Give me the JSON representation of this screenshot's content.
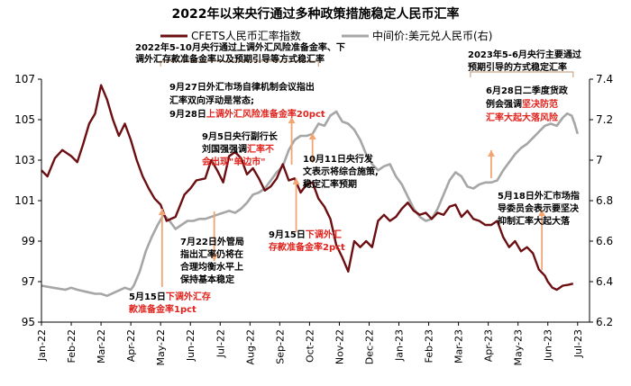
{
  "colors": {
    "cfets": "#6b0f12",
    "usdcny": "#a6a6a6",
    "annotation_text": "#000000",
    "highlight": "#e0231d",
    "arrow": "#f2a573",
    "bracket": "#c9a78a"
  },
  "chart_data": {
    "type": "line",
    "title": "2022年以来央行通过多种政策措施稳定人民币汇率",
    "x": [
      "Jan-22",
      "Feb-22",
      "Mar-22",
      "Apr-22",
      "May-22",
      "Jun-22",
      "Jul-22",
      "Aug-22",
      "Sep-22",
      "Oct-22",
      "Nov-22",
      "Dec-22",
      "Jan-23",
      "Feb-23",
      "Mar-23",
      "Apr-23",
      "May-23",
      "Jun-23",
      "Jul-23"
    ],
    "x_range": [
      0,
      18.4
    ],
    "left_axis": {
      "ylim": [
        95,
        107
      ],
      "ticks": [
        "95",
        "97",
        "99",
        "101",
        "103",
        "105",
        "107"
      ]
    },
    "right_axis": {
      "ylim": [
        6.2,
        7.4
      ],
      "ticks": [
        "6.2",
        "6.4",
        "6.6",
        "6.8",
        "7",
        "7.2",
        "7.4"
      ]
    },
    "grid": false,
    "legend_position": "top-center",
    "series": [
      {
        "name": "CFETS人民币汇率指数",
        "axis": "left",
        "points": [
          [
            0,
            102.5
          ],
          [
            0.2,
            102.2
          ],
          [
            0.45,
            103.1
          ],
          [
            0.7,
            103.5
          ],
          [
            1.0,
            103.2
          ],
          [
            1.2,
            102.9
          ],
          [
            1.4,
            103.8
          ],
          [
            1.6,
            104.8
          ],
          [
            1.8,
            105.3
          ],
          [
            2.0,
            106.7
          ],
          [
            2.2,
            106.0
          ],
          [
            2.4,
            105.0
          ],
          [
            2.6,
            104.2
          ],
          [
            2.8,
            104.8
          ],
          [
            3.0,
            104.0
          ],
          [
            3.2,
            103.0
          ],
          [
            3.4,
            102.2
          ],
          [
            3.6,
            101.6
          ],
          [
            3.8,
            101.1
          ],
          [
            4.0,
            100.8
          ],
          [
            4.2,
            100.0
          ],
          [
            4.5,
            100.2
          ],
          [
            4.8,
            101.3
          ],
          [
            5.0,
            101.6
          ],
          [
            5.2,
            102.0
          ],
          [
            5.5,
            102.1
          ],
          [
            5.7,
            103.0
          ],
          [
            5.9,
            102.5
          ],
          [
            6.1,
            101.9
          ],
          [
            6.3,
            103.2
          ],
          [
            6.5,
            103.4
          ],
          [
            6.7,
            103.1
          ],
          [
            6.9,
            102.3
          ],
          [
            7.1,
            102.6
          ],
          [
            7.3,
            102.1
          ],
          [
            7.5,
            101.5
          ],
          [
            7.7,
            101.7
          ],
          [
            7.9,
            102.1
          ],
          [
            8.1,
            102.8
          ],
          [
            8.3,
            102.0
          ],
          [
            8.5,
            102.1
          ],
          [
            8.7,
            101.4
          ],
          [
            8.9,
            101.8
          ],
          [
            9.1,
            101.9
          ],
          [
            9.3,
            101.1
          ],
          [
            9.5,
            100.7
          ],
          [
            9.7,
            100.1
          ],
          [
            9.9,
            98.8
          ],
          [
            10.1,
            98.2
          ],
          [
            10.3,
            97.5
          ],
          [
            10.5,
            99.0
          ],
          [
            10.7,
            98.7
          ],
          [
            10.9,
            99.0
          ],
          [
            11.1,
            98.7
          ],
          [
            11.3,
            100.0
          ],
          [
            11.5,
            100.3
          ],
          [
            11.7,
            100.0
          ],
          [
            11.9,
            100.2
          ],
          [
            12.1,
            100.6
          ],
          [
            12.3,
            100.9
          ],
          [
            12.5,
            100.5
          ],
          [
            12.7,
            100.3
          ],
          [
            12.9,
            100.4
          ],
          [
            13.1,
            100.1
          ],
          [
            13.3,
            100.4
          ],
          [
            13.5,
            100.3
          ],
          [
            13.7,
            100.7
          ],
          [
            13.9,
            100.8
          ],
          [
            14.1,
            100.2
          ],
          [
            14.3,
            100.5
          ],
          [
            14.5,
            100.1
          ],
          [
            14.7,
            100.0
          ],
          [
            14.9,
            99.8
          ],
          [
            15.1,
            99.8
          ],
          [
            15.3,
            100.0
          ],
          [
            15.5,
            99.2
          ],
          [
            15.7,
            98.7
          ],
          [
            15.9,
            99.0
          ],
          [
            16.1,
            98.5
          ],
          [
            16.3,
            98.7
          ],
          [
            16.5,
            98.4
          ],
          [
            16.7,
            97.6
          ],
          [
            16.9,
            97.3
          ],
          [
            17.0,
            97.0
          ],
          [
            17.15,
            96.7
          ],
          [
            17.3,
            96.6
          ],
          [
            17.5,
            96.8
          ],
          [
            17.7,
            96.85
          ],
          [
            17.85,
            96.9
          ]
        ]
      },
      {
        "name": "中间价:美元兑人民币(右)",
        "axis": "right",
        "points": [
          [
            0,
            6.38
          ],
          [
            0.4,
            6.37
          ],
          [
            0.8,
            6.36
          ],
          [
            1.0,
            6.37
          ],
          [
            1.2,
            6.36
          ],
          [
            1.5,
            6.35
          ],
          [
            1.8,
            6.34
          ],
          [
            2.0,
            6.34
          ],
          [
            2.2,
            6.33
          ],
          [
            2.5,
            6.35
          ],
          [
            2.8,
            6.37
          ],
          [
            3.0,
            6.36
          ],
          [
            3.1,
            6.38
          ],
          [
            3.3,
            6.45
          ],
          [
            3.5,
            6.55
          ],
          [
            3.7,
            6.62
          ],
          [
            3.9,
            6.68
          ],
          [
            4.1,
            6.73
          ],
          [
            4.3,
            6.7
          ],
          [
            4.5,
            6.66
          ],
          [
            4.7,
            6.68
          ],
          [
            4.9,
            6.7
          ],
          [
            5.1,
            6.7
          ],
          [
            5.3,
            6.71
          ],
          [
            5.5,
            6.71
          ],
          [
            5.7,
            6.72
          ],
          [
            5.9,
            6.73
          ],
          [
            6.1,
            6.74
          ],
          [
            6.3,
            6.75
          ],
          [
            6.5,
            6.74
          ],
          [
            6.7,
            6.76
          ],
          [
            6.9,
            6.79
          ],
          [
            7.1,
            6.83
          ],
          [
            7.3,
            6.84
          ],
          [
            7.5,
            6.86
          ],
          [
            7.7,
            6.9
          ],
          [
            7.9,
            6.94
          ],
          [
            8.1,
            6.97
          ],
          [
            8.3,
            7.05
          ],
          [
            8.5,
            7.1
          ],
          [
            8.7,
            7.12
          ],
          [
            8.9,
            7.12
          ],
          [
            9.1,
            7.13
          ],
          [
            9.3,
            7.18
          ],
          [
            9.5,
            7.17
          ],
          [
            9.7,
            7.22
          ],
          [
            9.9,
            7.24
          ],
          [
            10.1,
            7.19
          ],
          [
            10.3,
            7.18
          ],
          [
            10.5,
            7.15
          ],
          [
            10.7,
            7.1
          ],
          [
            10.9,
            7.03
          ],
          [
            11.1,
            6.98
          ],
          [
            11.3,
            6.95
          ],
          [
            11.5,
            6.97
          ],
          [
            11.7,
            6.98
          ],
          [
            11.9,
            6.92
          ],
          [
            12.1,
            6.88
          ],
          [
            12.3,
            6.82
          ],
          [
            12.5,
            6.76
          ],
          [
            12.7,
            6.72
          ],
          [
            12.9,
            6.7
          ],
          [
            13.1,
            6.71
          ],
          [
            13.3,
            6.76
          ],
          [
            13.5,
            6.83
          ],
          [
            13.7,
            6.9
          ],
          [
            13.9,
            6.94
          ],
          [
            14.1,
            6.92
          ],
          [
            14.3,
            6.87
          ],
          [
            14.5,
            6.86
          ],
          [
            14.7,
            6.88
          ],
          [
            14.9,
            6.89
          ],
          [
            15.1,
            6.89
          ],
          [
            15.3,
            6.9
          ],
          [
            15.5,
            6.95
          ],
          [
            15.7,
            6.99
          ],
          [
            15.9,
            7.03
          ],
          [
            16.1,
            7.06
          ],
          [
            16.3,
            7.08
          ],
          [
            16.5,
            7.11
          ],
          [
            16.7,
            7.14
          ],
          [
            16.9,
            7.17
          ],
          [
            17.1,
            7.18
          ],
          [
            17.3,
            7.17
          ],
          [
            17.5,
            7.21
          ],
          [
            17.65,
            7.23
          ],
          [
            17.8,
            7.22
          ],
          [
            17.9,
            7.18
          ],
          [
            18.0,
            7.13
          ]
        ]
      }
    ],
    "annotations": [
      {
        "lines": [
          {
            "t": "2022年5-10月央行通过上调外汇风险准备金率、下"
          },
          {
            "t": "调外汇存款准备金率以及预期引导等方式稳汇率"
          }
        ]
      },
      {
        "lines": [
          {
            "t": "9月27日外汇市场自律机制会议指出"
          },
          {
            "t": "汇率双向浮动是常态;"
          },
          {
            "t": "9月28日",
            "r": "上调外汇风险准备金率20pct"
          }
        ]
      },
      {
        "lines": [
          {
            "t": "9月5日央行副行长"
          },
          {
            "t": "刘国强强调",
            "r": "汇率不"
          },
          {
            "t": "",
            "r": "会出现\"单边市\""
          }
        ]
      },
      {
        "lines": [
          {
            "t": "10月11日央行发"
          },
          {
            "t": "文表示将综合施策,"
          },
          {
            "t": "稳定汇率预期"
          }
        ]
      },
      {
        "lines": [
          {
            "t": "7月22日外管局"
          },
          {
            "t": "指出汇率仍将在"
          },
          {
            "t": "合理均衡水平上"
          },
          {
            "t": "保持基本稳定"
          }
        ]
      },
      {
        "lines": [
          {
            "t": "9月15日",
            "r": "下调外汇"
          },
          {
            "t": "",
            "r": "存款准备金率2pct"
          }
        ]
      },
      {
        "lines": [
          {
            "t": "5月15日",
            "r": "下调外汇存"
          },
          {
            "t": "",
            "r": "款准备金率1pct"
          }
        ]
      },
      {
        "lines": [
          {
            "t": "2023年5-6月央行主要通过"
          },
          {
            "t": "预期引导的方式稳定汇率"
          }
        ]
      },
      {
        "lines": [
          {
            "t": "6月28日二季度货政"
          },
          {
            "t": "例会强调",
            "r": "坚决防范"
          },
          {
            "t": "",
            "r": "汇率大起大落风险"
          }
        ]
      },
      {
        "lines": [
          {
            "t": "5月18日外汇市场指"
          },
          {
            "t": "导委员会表示要坚决"
          },
          {
            "t": "抑制汇率大起大落"
          }
        ]
      }
    ]
  }
}
